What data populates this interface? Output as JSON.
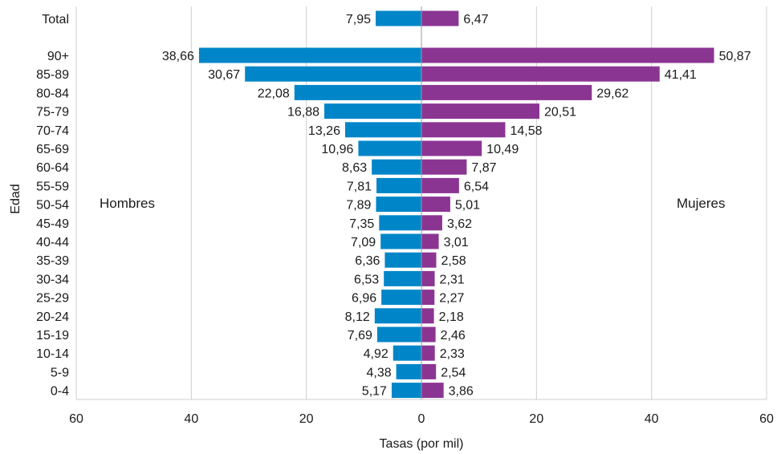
{
  "chart_data": {
    "type": "bar",
    "orientation": "horizontal",
    "layout": "population-pyramid",
    "xlabel": "Tasas (por mil)",
    "ylabel": "Edad",
    "xlim": [
      -60,
      60
    ],
    "xticks": [
      -60,
      -40,
      -20,
      0,
      20,
      40,
      60
    ],
    "xtick_labels": [
      "60",
      "40",
      "20",
      "0",
      "20",
      "40",
      "60"
    ],
    "grid": "vertical",
    "categories": [
      "Total",
      "90+",
      "85-89",
      "80-84",
      "75-79",
      "70-74",
      "65-69",
      "60-64",
      "55-59",
      "50-54",
      "45-49",
      "40-44",
      "35-39",
      "30-34",
      "25-29",
      "20-24",
      "15-19",
      "10-14",
      "5-9",
      "0-4"
    ],
    "group_labels": {
      "left": "Hombres",
      "right": "Mujeres"
    },
    "series": [
      {
        "side": "left",
        "color": "#0086c8",
        "values": [
          7.95,
          38.66,
          30.67,
          22.08,
          16.88,
          13.26,
          10.96,
          8.63,
          7.81,
          7.89,
          7.35,
          7.09,
          6.36,
          6.53,
          6.96,
          8.12,
          7.69,
          4.92,
          4.38,
          5.17
        ],
        "labels": [
          "7,95",
          "38,66",
          "30,67",
          "22,08",
          "16,88",
          "13,26",
          "10,96",
          "8,63",
          "7,81",
          "7,89",
          "7,35",
          "7,09",
          "6,36",
          "6,53",
          "6,96",
          "8,12",
          "7,69",
          "4,92",
          "4,38",
          "5,17"
        ]
      },
      {
        "side": "right",
        "color": "#8b3593",
        "values": [
          6.47,
          50.87,
          41.41,
          29.62,
          20.51,
          14.58,
          10.49,
          7.87,
          6.54,
          5.01,
          3.62,
          3.01,
          2.58,
          2.31,
          2.27,
          2.18,
          2.46,
          2.33,
          2.54,
          3.86
        ],
        "labels": [
          "6,47",
          "50,87",
          "41,41",
          "29,62",
          "20,51",
          "14,58",
          "10,49",
          "7,87",
          "6,54",
          "5,01",
          "3,62",
          "3,01",
          "2,58",
          "2,31",
          "2,27",
          "2,18",
          "2,46",
          "2,33",
          "2,54",
          "3,86"
        ]
      }
    ]
  }
}
